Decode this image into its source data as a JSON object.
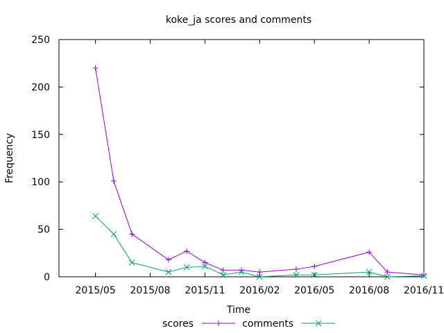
{
  "chart_data": {
    "type": "line",
    "title": "koke_ja scores and comments",
    "xlabel": "Time",
    "ylabel": "Frequency",
    "ylim": [
      0,
      250
    ],
    "yticks": [
      0,
      50,
      100,
      150,
      200,
      250
    ],
    "xlim": [
      "2015-03",
      "2016-11"
    ],
    "xticks": [
      "2015-05",
      "2015-08",
      "2015-11",
      "2016-02",
      "2016-05",
      "2016-08",
      "2016-11"
    ],
    "xtick_labels": [
      "2015/05",
      "2015/08",
      "2015/11",
      "2016/02",
      "2016/05",
      "2016/08",
      "2016/11"
    ],
    "grid": false,
    "legend_position": "bottom",
    "x": [
      "2015-05",
      "2015-06",
      "2015-07",
      "2015-09",
      "2015-10",
      "2015-11",
      "2015-12",
      "2016-01",
      "2016-02",
      "2016-04",
      "2016-05",
      "2016-08",
      "2016-09",
      "2016-11"
    ],
    "series": [
      {
        "name": "scores",
        "color": "#9400d3",
        "marker": "plus",
        "values": [
          220,
          101,
          45,
          18,
          27,
          15,
          7,
          7,
          5,
          8,
          11,
          26,
          5,
          2
        ]
      },
      {
        "name": "comments",
        "color": "#009e73",
        "marker": "cross",
        "values": [
          64,
          45,
          15,
          5,
          10,
          11,
          2,
          5,
          0,
          2,
          2,
          5,
          0,
          1
        ]
      }
    ]
  }
}
